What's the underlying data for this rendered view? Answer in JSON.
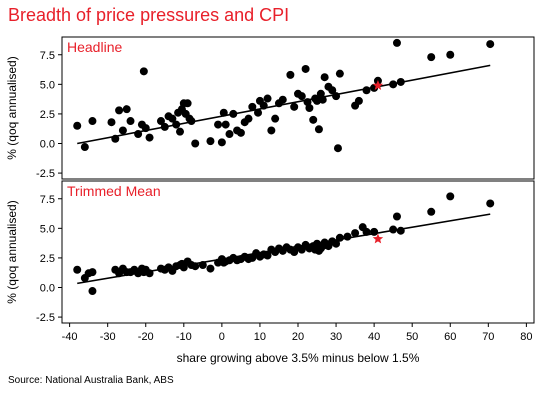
{
  "title": "Breadth of price pressures and CPI",
  "source": "Source: National Australia Bank, ABS",
  "colors": {
    "title": "#e8202a",
    "panel_title": "#e8202a",
    "point": "#000000",
    "highlight": "#e8202a",
    "trend": "#000000",
    "frame": "#000000"
  },
  "chart_data": [
    {
      "type": "scatter",
      "title": "Headline",
      "ylabel": "% (qoq annualised)",
      "xlabel": "",
      "xlim": [
        -42,
        82
      ],
      "ylim": [
        -3,
        9
      ],
      "xticks": [],
      "yticks": [
        "-2.5",
        "0.0",
        "2.5",
        "5.0",
        "7.5"
      ],
      "grid": false,
      "trendline": {
        "x": [
          -38,
          70.5
        ],
        "y": [
          0.0,
          6.6
        ]
      },
      "highlight": {
        "x": 41,
        "y": 4.9,
        "marker": "star"
      },
      "points": [
        [
          -38,
          1.5
        ],
        [
          -36,
          -0.3
        ],
        [
          -34,
          1.9
        ],
        [
          -29,
          1.8
        ],
        [
          -28,
          0.4
        ],
        [
          -27,
          2.8
        ],
        [
          -26,
          1.1
        ],
        [
          -25,
          2.9
        ],
        [
          -24,
          1.9
        ],
        [
          -22,
          0.8
        ],
        [
          -21,
          1.6
        ],
        [
          -20.5,
          6.1
        ],
        [
          -20,
          1.3
        ],
        [
          -19,
          0.5
        ],
        [
          -16,
          1.9
        ],
        [
          -15,
          1.4
        ],
        [
          -14,
          2.3
        ],
        [
          -13,
          2.1
        ],
        [
          -12,
          1.6
        ],
        [
          -11.5,
          2.6
        ],
        [
          -11,
          1.0
        ],
        [
          -10.5,
          2.9
        ],
        [
          -10,
          3.4
        ],
        [
          -9.5,
          2.5
        ],
        [
          -9,
          3.4
        ],
        [
          -8.5,
          2.1
        ],
        [
          -8,
          1.9
        ],
        [
          -7,
          0.0
        ],
        [
          -3,
          0.2
        ],
        [
          -1,
          1.6
        ],
        [
          0,
          0.1
        ],
        [
          0.5,
          2.6
        ],
        [
          1,
          1.6
        ],
        [
          2,
          0.8
        ],
        [
          3,
          2.5
        ],
        [
          4,
          1.1
        ],
        [
          5,
          0.9
        ],
        [
          6,
          1.8
        ],
        [
          7,
          2.1
        ],
        [
          8,
          3.1
        ],
        [
          9.5,
          2.6
        ],
        [
          10,
          3.6
        ],
        [
          11,
          3.2
        ],
        [
          12,
          3.8
        ],
        [
          13,
          1.1
        ],
        [
          14,
          2.1
        ],
        [
          15,
          3.4
        ],
        [
          16,
          3.7
        ],
        [
          18,
          5.8
        ],
        [
          19,
          3.1
        ],
        [
          20,
          4.2
        ],
        [
          21,
          4.0
        ],
        [
          22,
          6.3
        ],
        [
          22.5,
          3.5
        ],
        [
          23,
          3.0
        ],
        [
          24,
          2.0
        ],
        [
          24.5,
          3.8
        ],
        [
          25,
          3.6
        ],
        [
          25.5,
          1.2
        ],
        [
          26,
          4.2
        ],
        [
          26.5,
          3.7
        ],
        [
          27,
          5.6
        ],
        [
          28,
          4.8
        ],
        [
          29,
          4.5
        ],
        [
          30,
          4.0
        ],
        [
          30.5,
          -0.4
        ],
        [
          31,
          5.9
        ],
        [
          35,
          3.2
        ],
        [
          36,
          3.6
        ],
        [
          38,
          4.5
        ],
        [
          40,
          4.7
        ],
        [
          41,
          5.3
        ],
        [
          45,
          5.0
        ],
        [
          46,
          8.5
        ],
        [
          47,
          5.2
        ],
        [
          55,
          7.3
        ],
        [
          60,
          7.5
        ],
        [
          70.5,
          8.4
        ]
      ]
    },
    {
      "type": "scatter",
      "title": "Trimmed Mean",
      "ylabel": "% (qoq annualised)",
      "xlabel": "share growing above 3.5% minus below 1.5%",
      "xlim": [
        -42,
        82
      ],
      "ylim": [
        -3,
        9
      ],
      "xticks": [
        "-40",
        "-30",
        "-20",
        "-10",
        "0",
        "10",
        "20",
        "30",
        "40",
        "50",
        "60",
        "70",
        "80"
      ],
      "yticks": [
        "-2.5",
        "0.0",
        "2.5",
        "5.0",
        "7.5"
      ],
      "grid": false,
      "trendline": {
        "x": [
          -38,
          70.5
        ],
        "y": [
          0.35,
          6.2
        ]
      },
      "highlight": {
        "x": 41,
        "y": 4.1,
        "marker": "star"
      },
      "points": [
        [
          -38,
          1.5
        ],
        [
          -36,
          0.8
        ],
        [
          -35,
          1.2
        ],
        [
          -34,
          -0.3
        ],
        [
          -34,
          1.3
        ],
        [
          -28,
          1.5
        ],
        [
          -27,
          1.2
        ],
        [
          -26,
          1.6
        ],
        [
          -25,
          1.3
        ],
        [
          -24,
          1.3
        ],
        [
          -23,
          1.5
        ],
        [
          -22,
          1.2
        ],
        [
          -21,
          1.6
        ],
        [
          -20.5,
          1.3
        ],
        [
          -20,
          1.5
        ],
        [
          -19,
          1.2
        ],
        [
          -16,
          1.6
        ],
        [
          -15,
          1.5
        ],
        [
          -14,
          1.7
        ],
        [
          -13,
          1.4
        ],
        [
          -12,
          1.8
        ],
        [
          -11,
          1.9
        ],
        [
          -10.5,
          2.0
        ],
        [
          -10,
          1.7
        ],
        [
          -9,
          2.2
        ],
        [
          -8,
          1.9
        ],
        [
          -7,
          1.8
        ],
        [
          -5,
          1.9
        ],
        [
          -3,
          1.6
        ],
        [
          -1,
          2.1
        ],
        [
          0,
          2.4
        ],
        [
          0.5,
          2.1
        ],
        [
          1,
          2.2
        ],
        [
          2,
          2.3
        ],
        [
          3,
          2.5
        ],
        [
          4,
          2.3
        ],
        [
          5,
          2.4
        ],
        [
          6,
          2.6
        ],
        [
          7,
          2.4
        ],
        [
          8,
          2.5
        ],
        [
          9,
          2.9
        ],
        [
          10,
          2.6
        ],
        [
          11,
          2.8
        ],
        [
          12,
          2.7
        ],
        [
          13,
          3.2
        ],
        [
          14,
          3.0
        ],
        [
          15,
          3.3
        ],
        [
          16,
          3.1
        ],
        [
          17,
          3.4
        ],
        [
          18,
          3.2
        ],
        [
          19,
          3.0
        ],
        [
          20,
          3.4
        ],
        [
          21,
          3.2
        ],
        [
          22,
          3.6
        ],
        [
          23,
          3.3
        ],
        [
          24,
          3.5
        ],
        [
          24.5,
          3.2
        ],
        [
          25,
          3.7
        ],
        [
          25.5,
          3.1
        ],
        [
          26,
          3.3
        ],
        [
          26.5,
          3.5
        ],
        [
          27,
          3.8
        ],
        [
          28,
          3.5
        ],
        [
          29,
          3.9
        ],
        [
          30,
          3.7
        ],
        [
          31,
          4.2
        ],
        [
          33,
          4.3
        ],
        [
          35,
          4.6
        ],
        [
          37,
          5.1
        ],
        [
          38,
          4.7
        ],
        [
          40,
          4.7
        ],
        [
          45,
          4.9
        ],
        [
          46,
          6.0
        ],
        [
          47,
          4.8
        ],
        [
          55,
          6.4
        ],
        [
          60,
          7.7
        ],
        [
          70.5,
          7.1
        ]
      ]
    }
  ]
}
